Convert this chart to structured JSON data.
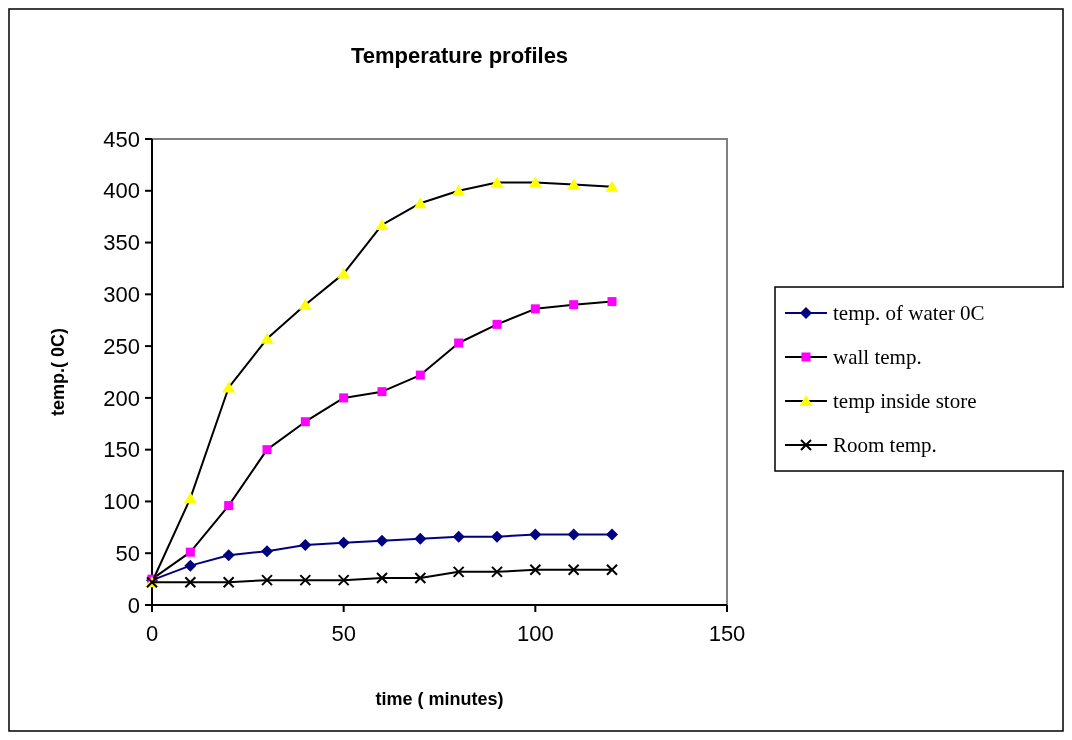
{
  "chart_data": {
    "type": "line",
    "title": "Temperature profiles",
    "xlabel": "time ( minutes)",
    "ylabel": "temp.( 0C)",
    "x": [
      0,
      10,
      20,
      30,
      40,
      50,
      60,
      70,
      80,
      90,
      100,
      110,
      120
    ],
    "xlim": [
      0,
      150
    ],
    "xticks": [
      0,
      50,
      100,
      150
    ],
    "ylim": [
      0,
      450
    ],
    "yticks": [
      0,
      50,
      100,
      150,
      200,
      250,
      300,
      350,
      400,
      450
    ],
    "grid": false,
    "legend": "right",
    "series": [
      {
        "name": "temp. of water 0C",
        "color": "#000080",
        "marker": "diamond",
        "values": [
          24,
          38,
          48,
          52,
          58,
          60,
          62,
          64,
          66,
          66,
          68,
          68,
          68
        ]
      },
      {
        "name": "wall temp.",
        "color": "#000000",
        "colors": [
          "#ff00ff",
          "#ff00ff",
          "#ff00ff",
          "#ff00ff",
          "#ff00ff",
          "#ff00ff",
          "#ff00ff",
          "#ff00ff",
          "#ff00ff",
          "#ff00ff",
          "#ff00ff",
          "#ff00ff",
          "#ff00ff"
        ],
        "marker": "square",
        "values": [
          25,
          51,
          96,
          150,
          177,
          200,
          206,
          222,
          253,
          271,
          286,
          290,
          293
        ]
      },
      {
        "name": "temp inside store",
        "color": "#000000",
        "colors": [
          "#ffff00",
          "#ffff00",
          "#ffff00",
          "#ffff00",
          "#ffff00",
          "#ffff00",
          "#ffff00",
          "#ffff00",
          "#ffff00",
          "#ffff00",
          "#ffff00",
          "#ffff00",
          "#ffff00"
        ],
        "marker": "triangle",
        "values": [
          22,
          103,
          210,
          257,
          290,
          320,
          367,
          388,
          400,
          408,
          408,
          406,
          404
        ]
      },
      {
        "name": "Room temp.",
        "color": "#000000",
        "marker": "cross",
        "values": [
          22,
          22,
          22,
          24,
          24,
          24,
          26,
          26,
          32,
          32,
          34,
          34,
          34
        ]
      }
    ]
  }
}
